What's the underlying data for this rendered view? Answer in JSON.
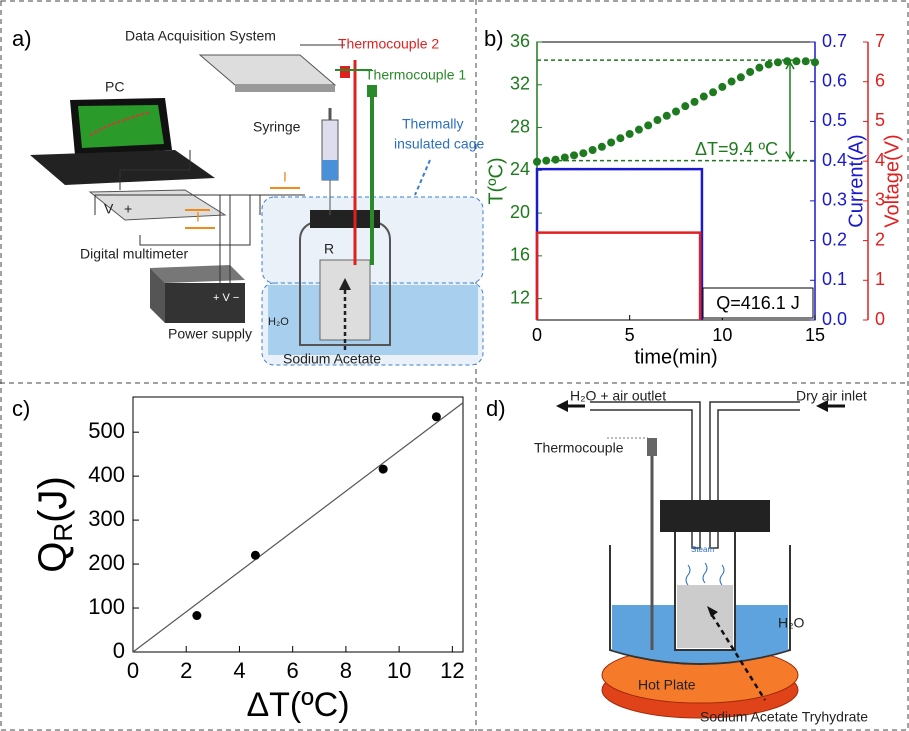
{
  "panels": {
    "a": "a)",
    "b": "b)",
    "c": "c)",
    "d": "d)"
  },
  "diagram_a": {
    "data_acquisition": "Data Acquisition System",
    "thermocouple_2": "Thermocouple 2",
    "thermocouple_1": "Thermocouple 1",
    "pc": "PC",
    "syringe": "Syringe",
    "cage": [
      "Thermally",
      "insulated cage"
    ],
    "current": "I",
    "voltage": "V",
    "plus": "+",
    "multimeter": "Digital multimeter",
    "resistor": "R",
    "water": "H₂O",
    "power_supply": "Power supply",
    "power_terminals": "+ V −",
    "sample": "Sodium Acetate"
  },
  "chart_data": [
    {
      "type": "line",
      "x_label": "time(min)",
      "y_label": "T(ºC)",
      "y2_label": "Current(A)",
      "y3_label": "Voltage(V)",
      "xlim": [
        0,
        15
      ],
      "xticks": [
        0,
        5,
        10,
        15
      ],
      "ylim": [
        10,
        36
      ],
      "yticks": [
        12,
        16,
        20,
        24,
        28,
        32,
        36
      ],
      "y2lim": [
        0,
        0.7
      ],
      "y2ticks": [
        {
          "value": 0,
          "label": "0.0"
        },
        0.1,
        0.2,
        0.3,
        0.4,
        0.5,
        0.6,
        0.7
      ],
      "y3lim": [
        0,
        7
      ],
      "y3ticks": [
        0,
        1,
        2,
        3,
        4,
        5,
        6,
        7
      ],
      "series": [
        {
          "color": "#1e7a1e",
          "axis": "y",
          "marker": "circle",
          "x": [
            0,
            0.5,
            1,
            1.5,
            2,
            2.5,
            3,
            3.5,
            4,
            4.5,
            5,
            5.5,
            6,
            6.5,
            7,
            7.5,
            8,
            8.5,
            9,
            9.5,
            10,
            10.5,
            11,
            11.5,
            12,
            12.5,
            13,
            13.5,
            14,
            14.5,
            15
          ],
          "values": [
            24.8,
            24.9,
            25.0,
            25.2,
            25.4,
            25.6,
            25.9,
            26.2,
            26.6,
            27.0,
            27.4,
            27.8,
            28.2,
            28.7,
            29.1,
            29.5,
            30.0,
            30.4,
            30.9,
            31.3,
            31.8,
            32.3,
            32.7,
            33.2,
            33.6,
            33.9,
            34.1,
            34.2,
            34.2,
            34.2,
            34.1
          ]
        },
        {
          "color": "#1a1acc",
          "axis": "y2",
          "x": [
            0,
            0,
            8.9,
            8.9
          ],
          "values": [
            0,
            0.38,
            0.38,
            0
          ]
        },
        {
          "color": "#e02020",
          "axis": "y3",
          "x": [
            0,
            0,
            8.8,
            8.8
          ],
          "values": [
            0,
            2.2,
            2.2,
            0
          ]
        }
      ],
      "reference_lines": [
        34.3,
        24.9
      ],
      "annotations": [
        "ΔT=9.4 ºC",
        "Q=416.1 J"
      ]
    },
    {
      "type": "scatter",
      "x_label": "ΔT(ºC)",
      "y_label": {
        "main": "Q",
        "sub": "R",
        "unit": "(J)"
      },
      "xlim": [
        0,
        12.4
      ],
      "xticks": [
        0,
        2,
        4,
        6,
        8,
        10,
        12
      ],
      "ylim": [
        0,
        580
      ],
      "yticks": [
        0,
        100,
        200,
        300,
        400,
        500
      ],
      "x": [
        2.4,
        4.6,
        9.4,
        11.4
      ],
      "values": [
        83,
        220,
        416,
        535
      ],
      "color": "#000000",
      "fit": {
        "x": [
          0,
          12.4
        ],
        "values": [
          0,
          567
        ]
      }
    }
  ],
  "diagram_d": {
    "outlet": "H₂O + air outlet",
    "inlet": "Dry air inlet",
    "thermocouple": "Thermocouple",
    "steam": "Steam",
    "water": "H₂O",
    "hot_plate": "Hot Plate",
    "sample": "Sodium Acetate Tryhydrate"
  }
}
